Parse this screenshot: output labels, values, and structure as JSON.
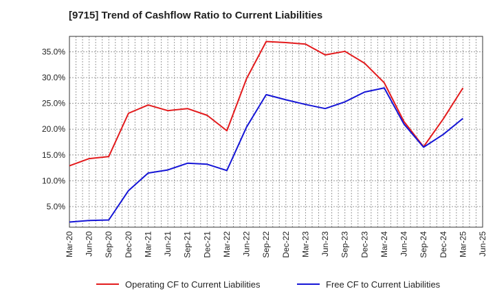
{
  "chart_data": {
    "type": "line",
    "title": "[9715]  Trend of Cashflow Ratio to Current Liabilities",
    "xlabel": "",
    "ylabel": "",
    "categories": [
      "Mar-20",
      "Jun-20",
      "Sep-20",
      "Dec-20",
      "Mar-21",
      "Jun-21",
      "Sep-21",
      "Dec-21",
      "Mar-22",
      "Jun-22",
      "Sep-22",
      "Dec-22",
      "Mar-23",
      "Jun-23",
      "Sep-23",
      "Dec-23",
      "Mar-24",
      "Jun-24",
      "Sep-24",
      "Dec-24",
      "Mar-25",
      "Jun-25"
    ],
    "y_ticks": [
      "5.0%",
      "10.0%",
      "15.0%",
      "20.0%",
      "25.0%",
      "30.0%",
      "35.0%"
    ],
    "ylim": [
      1.0,
      38.0
    ],
    "grid": true,
    "legend_position": "bottom",
    "series": [
      {
        "name": "Operating CF to Current Liabilities",
        "color": "#e31a1c",
        "values": [
          12.9,
          14.3,
          14.7,
          23.1,
          24.7,
          23.6,
          24.0,
          22.7,
          19.7,
          29.8,
          37.0,
          36.8,
          36.5,
          34.4,
          35.1,
          32.8,
          29.0,
          21.5,
          16.6,
          22.0,
          28.0,
          null
        ]
      },
      {
        "name": "Free CF to Current Liabilities",
        "color": "#1414d6",
        "values": [
          2.0,
          2.3,
          2.4,
          8.1,
          11.5,
          12.1,
          13.4,
          13.2,
          12.0,
          20.4,
          26.7,
          25.7,
          24.8,
          24.0,
          25.3,
          27.2,
          28.0,
          21.0,
          16.5,
          19.0,
          22.1,
          null
        ]
      }
    ]
  }
}
